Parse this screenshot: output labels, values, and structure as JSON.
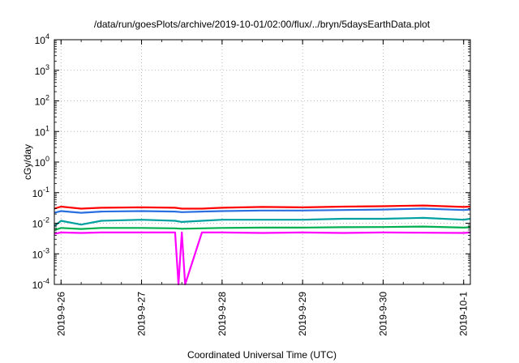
{
  "chart_data": {
    "type": "line",
    "title": "/data/run/goesPlots/archive/2019-10-01/02:00/flux/../bryn/5daysEarthData.plot",
    "xlabel": "Coordinated Universal Time (UTC)",
    "ylabel": "cGy/day",
    "yscale": "log",
    "ylim": [
      0.0001,
      10000
    ],
    "xlim": [
      "2019-09-25 22:00",
      "2019-10-01 02:00"
    ],
    "grid": true,
    "legend": "none",
    "x_ticks": [
      {
        "label": "2019-9-26",
        "x": "2019-09-26 00:00"
      },
      {
        "label": "2019-9-27",
        "x": "2019-09-27 00:00"
      },
      {
        "label": "2019-9-28",
        "x": "2019-09-28 00:00"
      },
      {
        "label": "2019-9-29",
        "x": "2019-09-29 00:00"
      },
      {
        "label": "2019-9-30",
        "x": "2019-09-30 00:00"
      },
      {
        "label": "2019-10-1",
        "x": "2019-10-01 00:00"
      }
    ],
    "y_ticks": [
      {
        "value": 0.0001,
        "base": "10",
        "exp": "-4"
      },
      {
        "value": 0.001,
        "base": "10",
        "exp": "-3"
      },
      {
        "value": 0.01,
        "base": "10",
        "exp": "-2"
      },
      {
        "value": 0.1,
        "base": "10",
        "exp": "-1"
      },
      {
        "value": 1,
        "base": "10",
        "exp": "0"
      },
      {
        "value": 10,
        "base": "10",
        "exp": "1"
      },
      {
        "value": 100,
        "base": "10",
        "exp": "2"
      },
      {
        "value": 1000,
        "base": "10",
        "exp": "3"
      },
      {
        "value": 10000,
        "base": "10",
        "exp": "4"
      }
    ],
    "series": [
      {
        "color": "#ff0000",
        "x": [
          "2019-09-25 22:00",
          "2019-09-26 00:00",
          "2019-09-26 06:00",
          "2019-09-26 12:00",
          "2019-09-27 00:00",
          "2019-09-27 10:00",
          "2019-09-27 12:00",
          "2019-09-27 18:00",
          "2019-09-28 00:00",
          "2019-09-28 12:00",
          "2019-09-29 00:00",
          "2019-09-29 12:00",
          "2019-09-30 00:00",
          "2019-09-30 12:00",
          "2019-10-01 00:00",
          "2019-10-01 02:00"
        ],
        "y": [
          0.03,
          0.035,
          0.03,
          0.032,
          0.033,
          0.032,
          0.03,
          0.03,
          0.032,
          0.034,
          0.033,
          0.035,
          0.036,
          0.038,
          0.034,
          0.035
        ]
      },
      {
        "color": "#2a6fe0",
        "x": [
          "2019-09-25 22:00",
          "2019-09-26 00:00",
          "2019-09-26 06:00",
          "2019-09-26 12:00",
          "2019-09-27 00:00",
          "2019-09-27 10:00",
          "2019-09-27 12:00",
          "2019-09-27 18:00",
          "2019-09-28 00:00",
          "2019-09-28 12:00",
          "2019-09-29 00:00",
          "2019-09-29 12:00",
          "2019-09-30 00:00",
          "2019-09-30 12:00",
          "2019-10-01 00:00",
          "2019-10-01 02:00"
        ],
        "y": [
          0.022,
          0.025,
          0.022,
          0.024,
          0.025,
          0.024,
          0.023,
          0.024,
          0.025,
          0.026,
          0.026,
          0.027,
          0.028,
          0.03,
          0.027,
          0.028
        ]
      },
      {
        "color": "#00a0a0",
        "x": [
          "2019-09-25 22:00",
          "2019-09-26 00:00",
          "2019-09-26 06:00",
          "2019-09-26 12:00",
          "2019-09-27 00:00",
          "2019-09-27 10:00",
          "2019-09-27 12:00",
          "2019-09-27 18:00",
          "2019-09-28 00:00",
          "2019-09-28 12:00",
          "2019-09-29 00:00",
          "2019-09-29 12:00",
          "2019-09-30 00:00",
          "2019-09-30 12:00",
          "2019-10-01 00:00",
          "2019-10-01 02:00"
        ],
        "y": [
          0.008,
          0.012,
          0.009,
          0.012,
          0.013,
          0.012,
          0.011,
          0.012,
          0.013,
          0.013,
          0.013,
          0.014,
          0.014,
          0.015,
          0.013,
          0.014
        ]
      },
      {
        "color": "#00b050",
        "x": [
          "2019-09-25 22:00",
          "2019-09-26 00:00",
          "2019-09-26 06:00",
          "2019-09-26 12:00",
          "2019-09-27 00:00",
          "2019-09-27 10:00",
          "2019-09-27 12:00",
          "2019-09-27 18:00",
          "2019-09-28 00:00",
          "2019-09-28 12:00",
          "2019-09-29 00:00",
          "2019-09-29 12:00",
          "2019-09-30 00:00",
          "2019-09-30 12:00",
          "2019-10-01 00:00",
          "2019-10-01 02:00"
        ],
        "y": [
          0.006,
          0.007,
          0.0065,
          0.007,
          0.007,
          0.0068,
          0.0066,
          0.0068,
          0.007,
          0.0072,
          0.0072,
          0.0074,
          0.0075,
          0.0078,
          0.0072,
          0.0074
        ]
      },
      {
        "color": "#ff00ff",
        "x": [
          "2019-09-25 22:00",
          "2019-09-26 00:00",
          "2019-09-26 06:00",
          "2019-09-26 12:00",
          "2019-09-27 00:00",
          "2019-09-27 10:00",
          "2019-09-27 11:00",
          "2019-09-27 12:00",
          "2019-09-27 13:00",
          "2019-09-27 18:00",
          "2019-09-28 00:00",
          "2019-09-28 12:00",
          "2019-09-29 00:00",
          "2019-09-29 12:00",
          "2019-09-30 00:00",
          "2019-09-30 12:00",
          "2019-10-01 00:00",
          "2019-10-01 02:00"
        ],
        "y": [
          0.0045,
          0.005,
          0.0048,
          0.005,
          0.005,
          0.005,
          0.0001,
          0.005,
          0.0001,
          0.005,
          0.005,
          0.0048,
          0.005,
          0.0048,
          0.005,
          0.0049,
          0.0048,
          0.005
        ]
      }
    ]
  }
}
